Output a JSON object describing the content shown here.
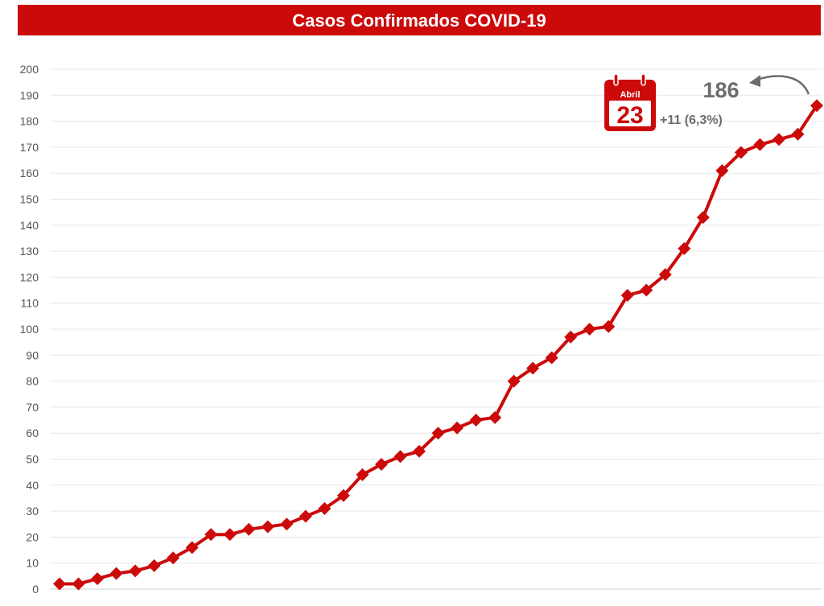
{
  "header": {
    "title": "Casos Confirmados COVID-19"
  },
  "annotation": {
    "total": "186",
    "month": "Abril",
    "day": "23",
    "delta": "+11 (6,3%)"
  },
  "colors": {
    "accent": "#cc0a0a",
    "grid": "#e6e6e6",
    "text": "#555555"
  },
  "chart_data": {
    "type": "line",
    "title": "Casos Confirmados COVID-19",
    "xlabel": "",
    "ylabel": "",
    "ylim": [
      0,
      200
    ],
    "yticks": [
      0,
      10,
      20,
      30,
      40,
      50,
      60,
      70,
      80,
      90,
      100,
      110,
      120,
      130,
      140,
      150,
      160,
      170,
      180,
      190,
      200
    ],
    "grid": true,
    "marker": "diamond",
    "series": [
      {
        "values": [
          2,
          2,
          4,
          6,
          7,
          9,
          12,
          16,
          21,
          21,
          23,
          24,
          25,
          28,
          31,
          36,
          44,
          48,
          51,
          53,
          60,
          62,
          65,
          66,
          80,
          85,
          89,
          97,
          100,
          101,
          113,
          115,
          121,
          131,
          143,
          161,
          168,
          171,
          173,
          175,
          186
        ]
      }
    ]
  }
}
